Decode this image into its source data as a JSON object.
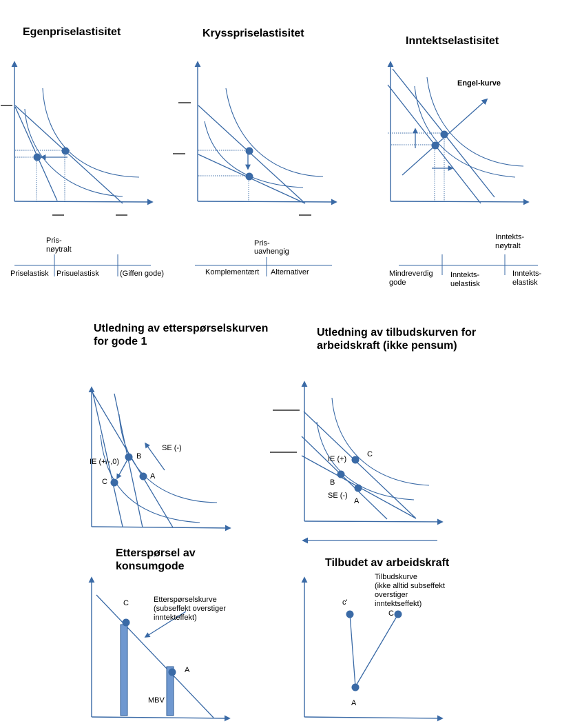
{
  "titles": {
    "own_price": "Egenpriselastisitet",
    "cross_price": "Krysspriselastisitet",
    "income": "Inntektselastisitet",
    "demand_derivation": [
      "Utledning av etterspørselskurven",
      "for gode 1"
    ],
    "labor_supply_derivation": [
      "Utledning av tilbudskurven for",
      "arbeidskraft (ikke pensum)"
    ],
    "demand_consumer_good": [
      "Etterspørsel av",
      "konsumgode"
    ],
    "labor_supply": "Tilbudet av arbeidskraft"
  },
  "own_price_scale": {
    "marker": [
      "Pris-",
      "nøytralt"
    ],
    "labels": [
      "Priselastisk",
      "Prisuelastisk",
      "(Giffen gode)"
    ]
  },
  "cross_price_scale": {
    "marker": [
      "Pris-",
      "uavhengig"
    ],
    "labels": [
      "Komplementært",
      "Alternativer"
    ]
  },
  "income_scale": {
    "marker": [
      "Inntekts-",
      "nøytralt"
    ],
    "labels": [
      [
        "Mindreverdig",
        "gode"
      ],
      [
        "Inntekts-",
        "uelastisk"
      ],
      [
        "Inntekts-",
        "elastisk"
      ]
    ]
  },
  "income_chart": {
    "engel_label": "Engel-kurve"
  },
  "demand_derivation_chart": {
    "se": "SE (-)",
    "ie": "IE (+/-,0)",
    "points": [
      "A",
      "B",
      "C"
    ]
  },
  "labor_derivation_chart": {
    "ie": "IE (+)",
    "se": "SE (-)",
    "points": [
      "A",
      "B",
      "C"
    ]
  },
  "demand_chart": {
    "points": [
      "C",
      "A"
    ],
    "mbv": "MBV",
    "curve_label": [
      "Etterspørselskurve",
      "(subseffekt overstiger",
      "inntekteffekt)"
    ]
  },
  "supply_chart": {
    "points": [
      "c'",
      "C",
      "A"
    ],
    "curve_label": [
      "Tilbudskurve",
      "(ikke alltid subseffekt",
      "overstiger",
      "inntektseffekt)"
    ]
  },
  "colors": {
    "accent": "#3a6aa6",
    "bar_fill": "#6f98d0"
  }
}
